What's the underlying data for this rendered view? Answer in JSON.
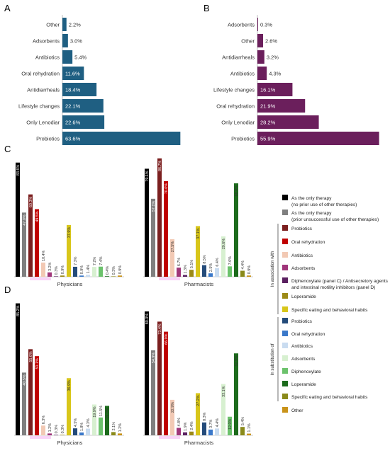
{
  "panel_letters": [
    "A",
    "B",
    "C",
    "D"
  ],
  "colors": {
    "panel_a_bar": "#1f5f82",
    "panel_b_bar": "#6b1f5c",
    "only_therapy_no_prior": "#000000",
    "only_therapy_prior": "#7f7f7f",
    "assoc_probiotics": "#7b1f1f",
    "assoc_oral_rehydration": "#c00000",
    "assoc_antibiotics": "#f2c9b4",
    "assoc_adsorbents": "#a0357a",
    "assoc_diphenoxylate": "#5a2060",
    "assoc_loperamide": "#9c8a17",
    "assoc_eating": "#d8c61a",
    "subst_probiotics": "#244b7a",
    "subst_oral_rehydration": "#3a78c9",
    "subst_antibiotics": "#c9dcf0",
    "subst_adsorbents": "#d7f0d0",
    "subst_diphenoxylate": "#6cc26c",
    "subst_loperamide": "#1c6b1c",
    "subst_eating": "#8a8a1a",
    "other": "#c9931a",
    "magenta_strip": "#f9d3f7"
  },
  "legend": {
    "only_items": [
      {
        "key": "only_therapy_no_prior",
        "line1": "As the only therapy",
        "line2": "(no prior use of other therapies)"
      },
      {
        "key": "only_therapy_prior",
        "line1": "As the only therapy",
        "line2": "(prior unsuccessful use of other therapies)"
      }
    ],
    "association_label": "In association with",
    "association_items": [
      {
        "key": "assoc_probiotics",
        "line1": "Probiotics",
        "line2": ""
      },
      {
        "key": "assoc_oral_rehydration",
        "line1": "Oral rehydration",
        "line2": ""
      },
      {
        "key": "assoc_antibiotics",
        "line1": "Antibiotics",
        "line2": ""
      },
      {
        "key": "assoc_adsorbents",
        "line1": "Adsorbents",
        "line2": ""
      },
      {
        "key": "assoc_diphenoxylate",
        "line1": "Diphenoxylate (panel C) / Antisecretory agents",
        "line2": "and intestinal motility inhibitors (panel D)"
      },
      {
        "key": "assoc_loperamide",
        "line1": "Loperamide",
        "line2": ""
      },
      {
        "key": "assoc_eating",
        "line1": "Specific eating and behavioral habits",
        "line2": ""
      }
    ],
    "substitution_label": "In substitution of",
    "substitution_items": [
      {
        "key": "subst_probiotics",
        "line1": "Probiotics",
        "line2": ""
      },
      {
        "key": "subst_oral_rehydration",
        "line1": "Oral rehydration",
        "line2": ""
      },
      {
        "key": "subst_antibiotics",
        "line1": "Antibiotics",
        "line2": ""
      },
      {
        "key": "subst_adsorbents",
        "line1": "Adsorbents",
        "line2": ""
      },
      {
        "key": "subst_diphenoxylate",
        "line1": "Diphenoxylate",
        "line2": ""
      },
      {
        "key": "subst_loperamide",
        "line1": "Loperamide",
        "line2": ""
      },
      {
        "key": "subst_eating",
        "line1": "Specific eating and behavioral habits",
        "line2": ""
      }
    ],
    "other_item": {
      "key": "other",
      "line1": "Other",
      "line2": ""
    }
  },
  "series_keys": [
    "only_therapy_no_prior",
    "only_therapy_prior",
    "assoc_probiotics",
    "assoc_oral_rehydration",
    "assoc_antibiotics",
    "assoc_adsorbents",
    "assoc_diphenoxylate",
    "assoc_loperamide",
    "assoc_eating",
    "subst_probiotics",
    "subst_oral_rehydration",
    "subst_antibiotics",
    "subst_adsorbents",
    "subst_diphenoxylate",
    "subst_loperamide",
    "subst_eating",
    "other"
  ],
  "chart_data": [
    {
      "panel": "A",
      "type": "bar",
      "orientation": "horizontal",
      "categories": [
        "Other",
        "Adsorbents",
        "Antibiotics",
        "Oral rehydration",
        "Antidiarrheals",
        "Lifestyle changes",
        "Only Lenodiar",
        "Probiotics"
      ],
      "values": [
        2.2,
        3.0,
        5.4,
        11.6,
        18.4,
        22.1,
        22.6,
        63.6
      ],
      "labels": [
        "2.2%",
        "3.0%",
        "5.4%",
        "11.6%",
        "18.4%",
        "22.1%",
        "22.6%",
        "63.6%"
      ],
      "xlim": [
        0,
        65
      ]
    },
    {
      "panel": "B",
      "type": "bar",
      "orientation": "horizontal",
      "categories": [
        "Adsorbents",
        "Other",
        "Antidiarrheals",
        "Antibiotics",
        "Lifestyle changes",
        "Oral rehydration",
        "Only Lenodiar",
        "Probiotics"
      ],
      "values": [
        0.3,
        2.6,
        3.2,
        4.3,
        16.1,
        21.9,
        28.2,
        55.9
      ],
      "labels": [
        "0.3%",
        "2.6%",
        "3.2%",
        "4.3%",
        "16.1%",
        "21.9%",
        "28.2%",
        "55.9%"
      ],
      "xlim": [
        0,
        57
      ]
    },
    {
      "panel": "C",
      "type": "bar",
      "ylim": [
        0,
        85
      ],
      "groups": [
        {
          "name": "Physicians",
          "values": [
            83.6,
            47.0,
            60.3,
            49.5,
            10.4,
            3.2,
            0.3,
            0.9,
            37.9,
            7.3,
            0.9,
            1.4,
            7.2,
            7.4,
            0.4,
            0.3,
            0.9
          ],
          "labels": [
            "83.6%",
            "47.0%",
            "60.3%",
            "49.5%",
            "10.4%",
            "3.2%",
            "0.3%",
            "0.9%",
            "37.9%",
            "7.3%",
            "0.9%",
            "1.4%",
            "7.2%",
            "7.4%",
            "0.4%",
            "0.3%",
            "0.9%"
          ]
        },
        {
          "name": "Pharmacists",
          "values": [
            79.1,
            57.1,
            86.7,
            70.0,
            27.5,
            6.7,
            1.3,
            5.1,
            37.1,
            8.5,
            2.5,
            6.4,
            29.6,
            7.6,
            68.4,
            4.4,
            0.9
          ],
          "labels": [
            "79.1%",
            "57.1%",
            "86.7%",
            "70.0%",
            "27.5%",
            "6.7%",
            "1.3%",
            "5.1%",
            "37.1%",
            "8.5%",
            "2.5%",
            "6.4%",
            "29.6%",
            "7.6%",
            "68.4%",
            "4.4%",
            "0.9%"
          ]
        }
      ]
    },
    {
      "panel": "D",
      "type": "bar",
      "ylim": [
        0,
        85
      ],
      "groups": [
        {
          "name": "Physicians",
          "values": [
            85.2,
            40.5,
            55.6,
            51.1,
            6.3,
            1.2,
            0.3,
            0.3,
            36.9,
            4.5,
            1.8,
            4.3,
            19.9,
            11.5,
            19.0,
            2.1,
            1.2
          ],
          "labels": [
            "85.2%",
            "40.5%",
            "55.6%",
            "51.1%",
            "6.3%",
            "1.2%",
            "0.3%",
            "0.3%",
            "36.9%",
            "4.5%",
            "1.8%",
            "4.3%",
            "19.9%",
            "11.5%",
            "19.0%",
            "2.1%",
            "1.2%"
          ]
        },
        {
          "name": "Pharmacists",
          "values": [
            80.0,
            54.9,
            73.4,
            66.9,
            22.9,
            4.8,
            1.9,
            2.4,
            27.2,
            8.3,
            3.7,
            4.4,
            33.1,
            12.0,
            52.9,
            5.4,
            1.1
          ],
          "labels": [
            "80.0%",
            "54.9%",
            "73.4%",
            "66.9%",
            "22.9%",
            "4.8%",
            "1.9%",
            "2.4%",
            "27.2%",
            "8.3%",
            "3.7%",
            "4.4%",
            "33.1%",
            "12.0%",
            "52.9%",
            "5.4%",
            "1.1%"
          ]
        }
      ]
    }
  ]
}
